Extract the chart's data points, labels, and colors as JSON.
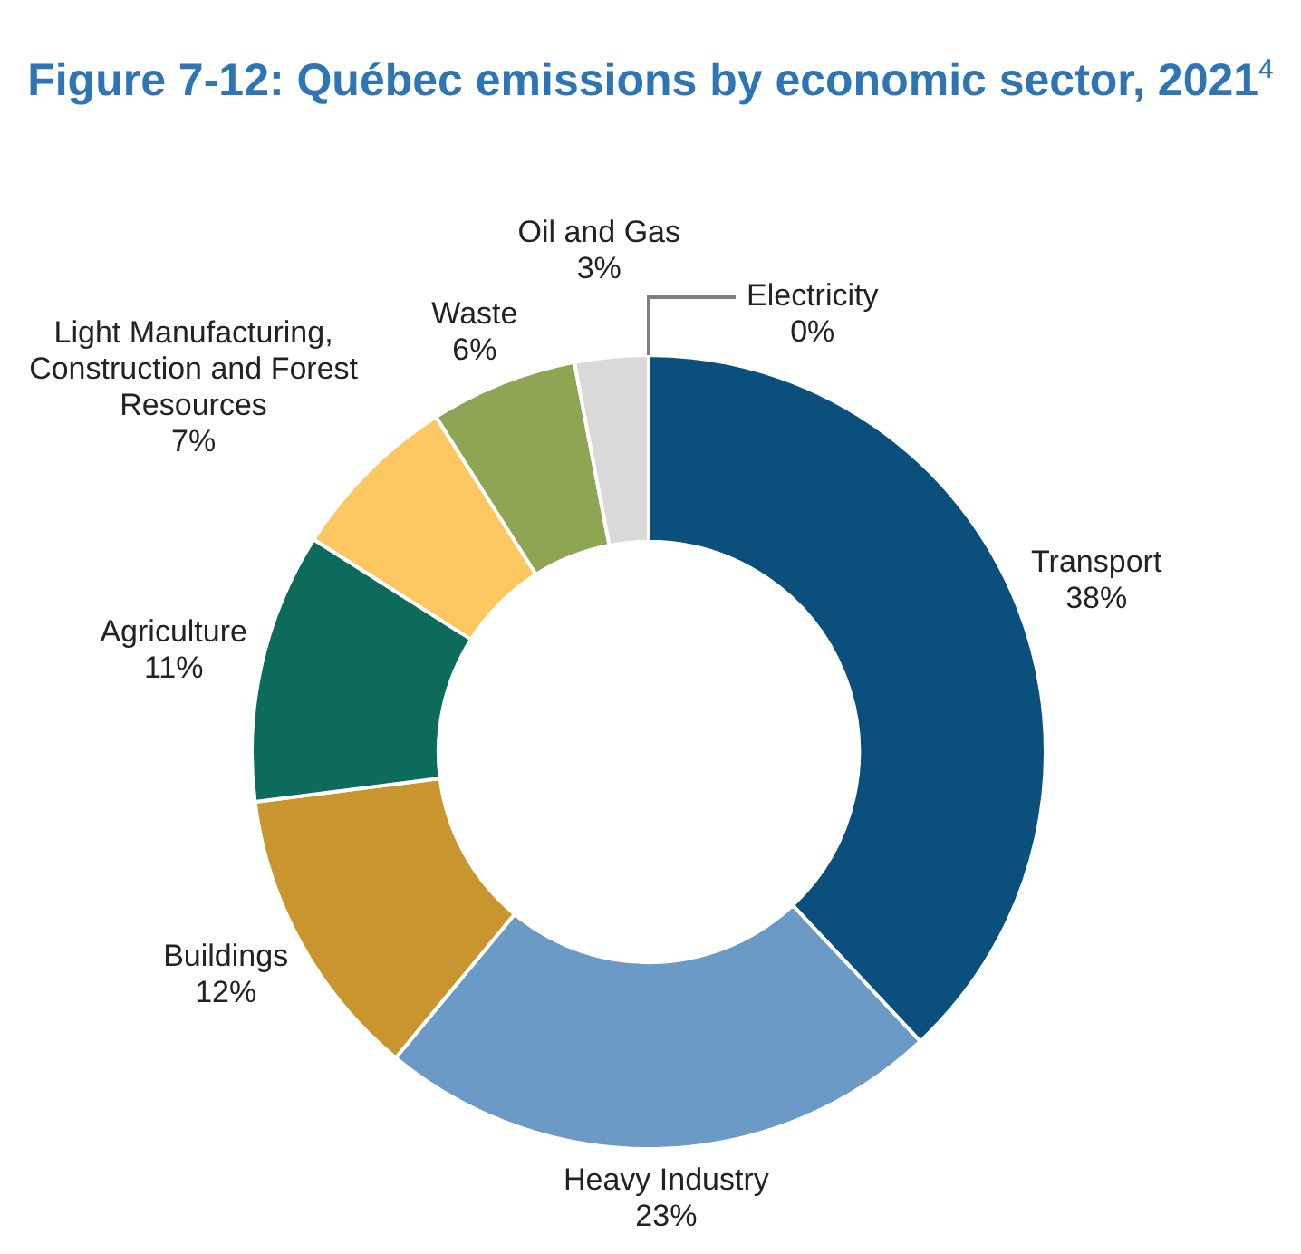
{
  "chart_data": {
    "type": "donut",
    "title": "Figure 7-12: Québec emissions by economic sector, 2021$^{4}$",
    "categories": [
      "Transport",
      "Heavy Industry",
      "Buildings",
      "Agriculture",
      "Light Manufacturing, Construction and Forest Resources",
      "Waste",
      "Oil and Gas",
      "Electricity"
    ],
    "values": [
      38,
      23,
      12,
      11,
      7,
      6,
      3,
      0
    ],
    "colors": [
      "#0b4f7c",
      "#6b9ac6",
      "#c9952e",
      "#0d6b5c",
      "#fcc760",
      "#8ea553",
      "#d9d9d9",
      "#8c8c8c"
    ],
    "value_labels": [
      "38%",
      "23%",
      "12%",
      "11%",
      "7%",
      "6%",
      "3%",
      "0%"
    ]
  }
}
